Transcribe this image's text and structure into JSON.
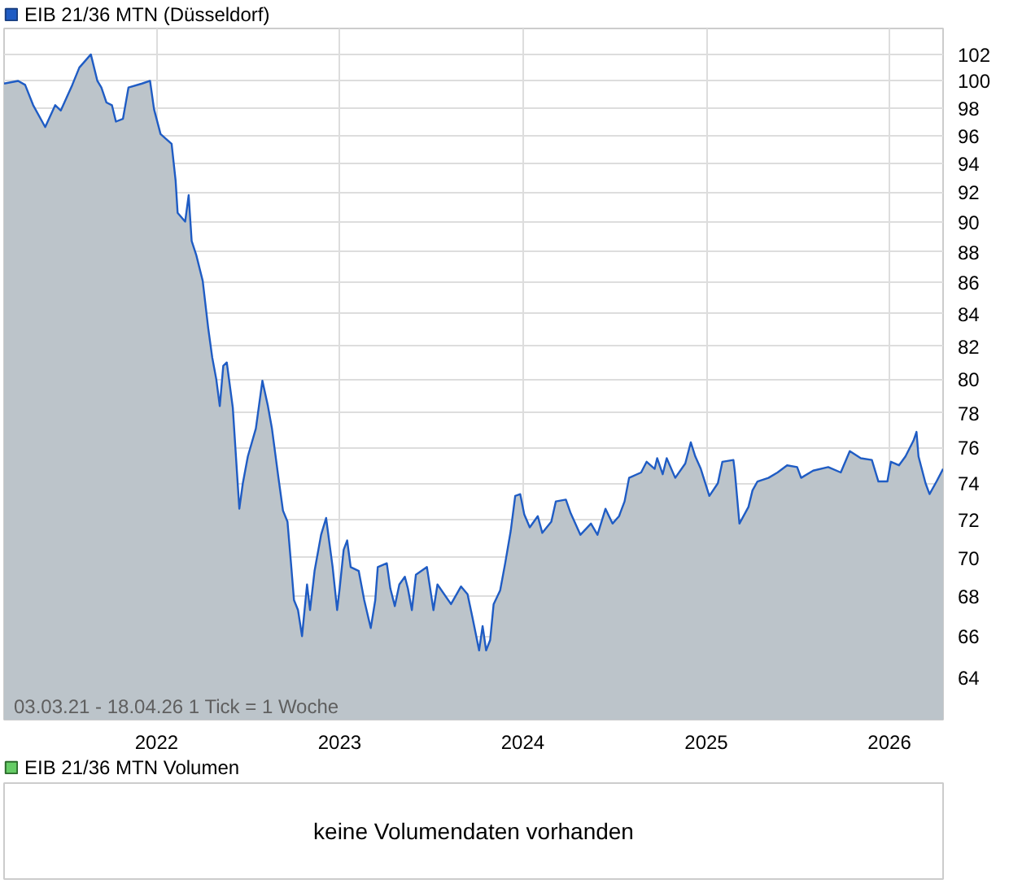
{
  "chart_data": [
    {
      "type": "area",
      "legend": "top left",
      "log": true,
      "grid": true,
      "xlim": [
        "2021-03-03",
        "2026-04-18"
      ],
      "xticks": [
        "2022",
        "2023",
        "2024",
        "2025",
        "2026"
      ],
      "ylim": [
        62,
        104
      ],
      "yticks": [
        64,
        66,
        68,
        70,
        72,
        74,
        76,
        78,
        80,
        82,
        84,
        86,
        88,
        90,
        92,
        94,
        96,
        98,
        100,
        102
      ],
      "annotations": [
        "03.03.21 - 18.04.26   1 Tick = 1 Woche"
      ],
      "x": [
        "2021-03-03",
        "2021-03-31",
        "2021-04-14",
        "2021-04-30",
        "2021-05-24",
        "2021-06-13",
        "2021-06-24",
        "2021-07-17",
        "2021-07-31",
        "2021-08-23",
        "2021-09-05",
        "2021-09-13",
        "2021-09-23",
        "2021-10-04",
        "2021-10-12",
        "2021-10-26",
        "2021-11-06",
        "2021-12-03",
        "2021-12-19",
        "2021-12-27",
        "2022-01-09",
        "2022-01-31",
        "2022-02-08",
        "2022-02-12",
        "2022-02-27",
        "2022-03-06",
        "2022-03-12",
        "2022-03-21",
        "2022-04-03",
        "2022-04-14",
        "2022-04-22",
        "2022-04-30",
        "2022-05-07",
        "2022-05-14",
        "2022-05-21",
        "2022-06-02",
        "2022-06-15",
        "2022-06-22",
        "2022-07-02",
        "2022-07-18",
        "2022-07-31",
        "2022-08-11",
        "2022-08-19",
        "2022-09-01",
        "2022-09-10",
        "2022-09-19",
        "2022-09-26",
        "2022-10-02",
        "2022-10-10",
        "2022-10-18",
        "2022-10-28",
        "2022-11-03",
        "2022-11-12",
        "2022-11-25",
        "2022-12-05",
        "2022-12-18",
        "2022-12-27",
        "2023-01-01",
        "2023-01-09",
        "2023-01-16",
        "2023-01-23",
        "2023-02-08",
        "2023-02-19",
        "2023-03-04",
        "2023-03-13",
        "2023-03-18",
        "2023-04-05",
        "2023-04-12",
        "2023-04-21",
        "2023-04-30",
        "2023-05-11",
        "2023-05-17",
        "2023-05-25",
        "2023-06-02",
        "2023-06-24",
        "2023-07-07",
        "2023-07-15",
        "2023-08-11",
        "2023-08-31",
        "2023-09-13",
        "2023-09-23",
        "2023-10-06",
        "2023-10-13",
        "2023-10-20",
        "2023-10-28",
        "2023-11-04",
        "2023-11-17",
        "2023-11-27",
        "2023-12-08",
        "2023-12-17",
        "2023-12-27",
        "2024-01-04",
        "2024-01-15",
        "2024-01-31",
        "2024-02-09",
        "2024-02-27",
        "2024-03-07",
        "2024-03-27",
        "2024-04-05",
        "2024-04-25",
        "2024-05-16",
        "2024-05-29",
        "2024-06-14",
        "2024-06-28",
        "2024-07-11",
        "2024-07-22",
        "2024-07-31",
        "2024-08-24",
        "2024-09-04",
        "2024-09-20",
        "2024-09-25",
        "2024-10-06",
        "2024-10-14",
        "2024-10-31",
        "2024-11-20",
        "2024-12-01",
        "2024-12-10",
        "2024-12-21",
        "2025-01-07",
        "2025-01-24",
        "2025-02-02",
        "2025-02-24",
        "2025-02-27",
        "2025-03-08",
        "2025-03-26",
        "2025-04-03",
        "2025-04-13",
        "2025-05-05",
        "2025-05-23",
        "2025-06-11",
        "2025-07-01",
        "2025-07-09",
        "2025-08-02",
        "2025-09-01",
        "2025-09-26",
        "2025-10-14",
        "2025-11-05",
        "2025-11-27",
        "2025-12-10",
        "2025-12-28",
        "2026-01-04",
        "2026-01-20",
        "2026-02-02",
        "2026-02-18",
        "2026-02-24",
        "2026-02-28",
        "2026-03-14",
        "2026-03-22",
        "2026-04-05",
        "2026-04-18"
      ],
      "series": [
        {
          "name": "EIB 21/36 MTN (Düsseldorf)",
          "color": "#1f5cc4",
          "values": [
            99.8,
            100.0,
            99.7,
            98.2,
            96.6,
            98.2,
            97.8,
            99.7,
            101.0,
            102.0,
            100.0,
            99.5,
            98.4,
            98.2,
            97.0,
            97.2,
            99.5,
            99.8,
            100.0,
            97.9,
            96.1,
            95.4,
            92.8,
            90.6,
            90.0,
            91.8,
            88.7,
            87.8,
            86.1,
            83.1,
            81.3,
            80.0,
            78.4,
            80.8,
            81.0,
            78.3,
            72.6,
            74.0,
            75.5,
            77.1,
            79.9,
            78.4,
            77.1,
            74.3,
            72.5,
            71.9,
            69.7,
            67.8,
            67.3,
            66.0,
            68.6,
            67.3,
            69.3,
            71.2,
            72.1,
            69.5,
            67.3,
            68.4,
            70.4,
            70.9,
            69.5,
            69.3,
            67.8,
            66.4,
            67.8,
            69.5,
            69.7,
            68.4,
            67.5,
            68.6,
            69.0,
            68.4,
            67.3,
            69.1,
            69.5,
            67.3,
            68.6,
            67.6,
            68.5,
            68.1,
            66.9,
            65.3,
            66.5,
            65.3,
            65.8,
            67.6,
            68.3,
            69.7,
            71.4,
            73.3,
            73.4,
            72.3,
            71.6,
            72.2,
            71.3,
            71.9,
            73.0,
            73.1,
            72.4,
            71.2,
            71.8,
            71.2,
            72.6,
            71.8,
            72.2,
            73.0,
            74.3,
            74.6,
            75.2,
            74.8,
            75.4,
            74.5,
            75.4,
            74.3,
            75.1,
            76.3,
            75.5,
            74.8,
            73.3,
            74.0,
            75.2,
            75.3,
            74.6,
            71.8,
            72.7,
            73.6,
            74.1,
            74.3,
            74.6,
            75.0,
            74.9,
            74.3,
            74.7,
            74.9,
            74.6,
            75.8,
            75.4,
            75.3,
            74.1,
            74.1,
            75.2,
            75.0,
            75.5,
            76.4,
            76.9,
            75.5,
            74.0,
            73.4,
            74.1,
            74.8
          ]
        }
      ]
    },
    {
      "type": "other",
      "legend": "top left",
      "series": [
        {
          "name": "EIB 21/36 MTN Volumen",
          "type": "bar",
          "color": "#66cc66"
        }
      ],
      "annotations": [
        "keine Volumendaten vorhanden"
      ]
    }
  ]
}
